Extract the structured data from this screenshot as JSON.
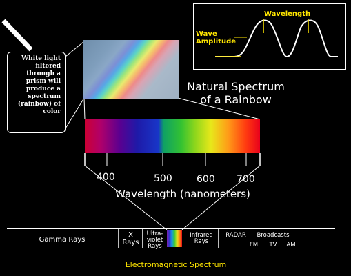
{
  "wave_box": {
    "wavelength_label": "Wavelength",
    "amplitude_label": "Wave Amplitude"
  },
  "note_text": "White light filtered through a prism will produce a spectrum (rainbow) of color",
  "natural_spectrum_title": "Natural Spectrum of a Rainbow",
  "visible_ticks": [
    "400",
    "500",
    "600",
    "700"
  ],
  "axis_title": "Wavelength (nanometers)",
  "em_bands": {
    "gamma": "Gamma Rays",
    "xrays": "X Rays",
    "ultraviolet": "Ultra-violet Rays",
    "infrared": "Infrared Rays",
    "radar": "RADAR",
    "broadcasts": "Broadcasts",
    "fm": "FM",
    "tv": "TV",
    "am": "AM"
  },
  "em_title": "Electromagnetic Spectrum",
  "colors": {
    "label_yellow": "#ffe600",
    "outline": "#ffffff",
    "background": "#000000"
  }
}
